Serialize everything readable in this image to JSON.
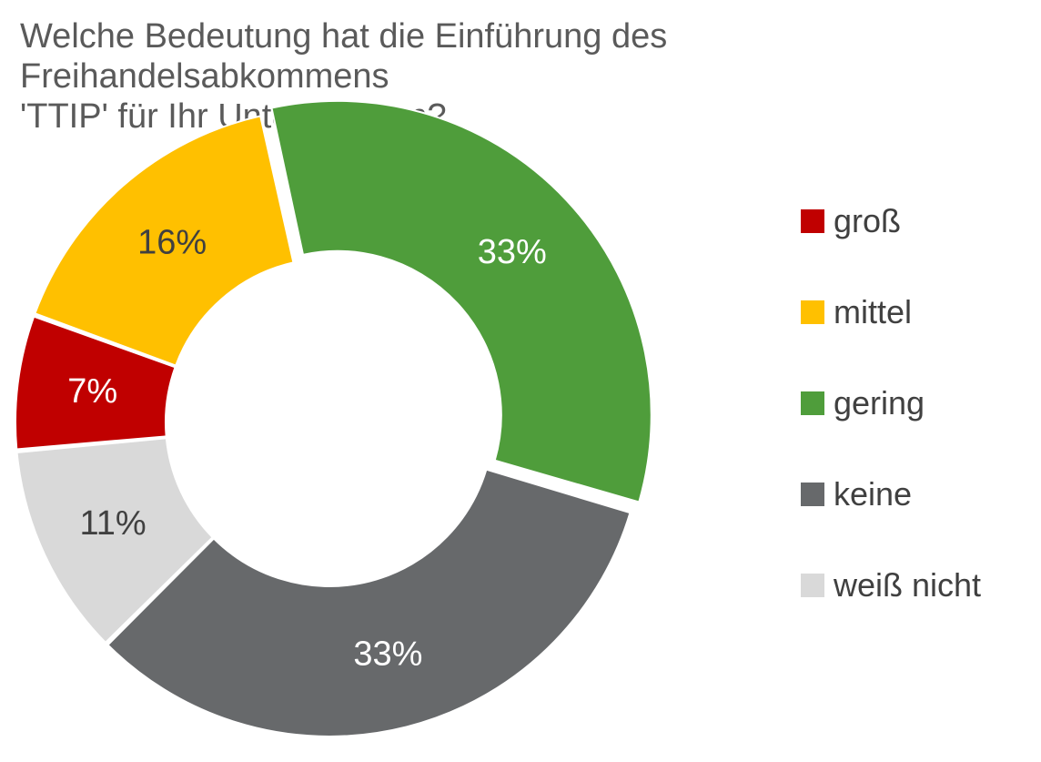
{
  "chart_data": {
    "type": "pie",
    "variant": "donut",
    "title": "Welche Bedeutung hat die Einführung des Freihandelsabkommens\n'TTIP' für Ihr Unternehmen?",
    "categories": [
      "groß",
      "mittel",
      "gering",
      "keine",
      "weiß nicht"
    ],
    "values": [
      7,
      16,
      33,
      33,
      11
    ],
    "value_labels": [
      "7%",
      "16%",
      "33%",
      "33%",
      "11%"
    ],
    "colors": [
      "#c00000",
      "#ffc000",
      "#4f9d3b",
      "#67696b",
      "#d9d9d9"
    ],
    "label_colors": [
      "#ffffff",
      "#404040",
      "#ffffff",
      "#ffffff",
      "#404040"
    ],
    "slice_order": [
      "mittel",
      "gering",
      "keine",
      "weiß nicht",
      "groß"
    ],
    "exploded": [
      "gering"
    ],
    "legend_position": "right"
  }
}
